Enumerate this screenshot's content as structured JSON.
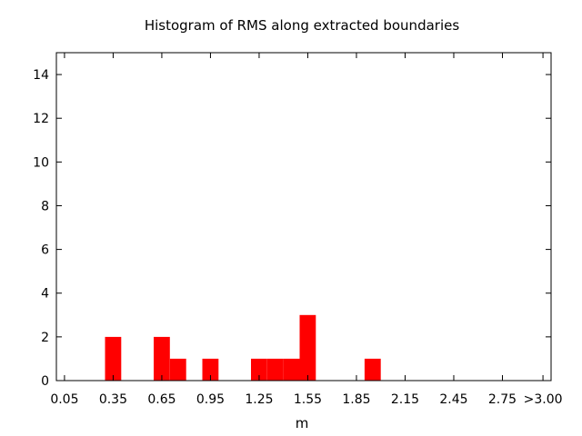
{
  "chart_data": {
    "type": "bar",
    "title": "Histogram of RMS along extracted boundaries",
    "xlabel": "m",
    "ylabel": "",
    "bin_width": 0.1,
    "xlim": [
      0.0,
      3.05
    ],
    "ylim": [
      0,
      15
    ],
    "x_tick_values": [
      0.05,
      0.35,
      0.65,
      0.95,
      1.25,
      1.55,
      1.85,
      2.15,
      2.45,
      2.75,
      3.0
    ],
    "x_tick_labels": [
      "0.05",
      "0.35",
      "0.65",
      "0.95",
      "1.25",
      "1.55",
      "1.85",
      "2.15",
      "2.45",
      "2.75",
      ">3.00"
    ],
    "y_tick_values": [
      0,
      2,
      4,
      6,
      8,
      10,
      12,
      14
    ],
    "y_tick_labels": [
      "0",
      "2",
      "4",
      "6",
      "8",
      "10",
      "12",
      "14"
    ],
    "bins": [
      {
        "start": 0.3,
        "end": 0.4,
        "count": 2
      },
      {
        "start": 0.6,
        "end": 0.7,
        "count": 2
      },
      {
        "start": 0.7,
        "end": 0.8,
        "count": 1
      },
      {
        "start": 0.9,
        "end": 1.0,
        "count": 1
      },
      {
        "start": 1.2,
        "end": 1.3,
        "count": 1
      },
      {
        "start": 1.3,
        "end": 1.4,
        "count": 1
      },
      {
        "start": 1.4,
        "end": 1.5,
        "count": 1
      },
      {
        "start": 1.5,
        "end": 1.6,
        "count": 3
      },
      {
        "start": 1.9,
        "end": 2.0,
        "count": 1
      }
    ],
    "bar_color": "#ff0000",
    "grid": false,
    "legend": "none"
  }
}
